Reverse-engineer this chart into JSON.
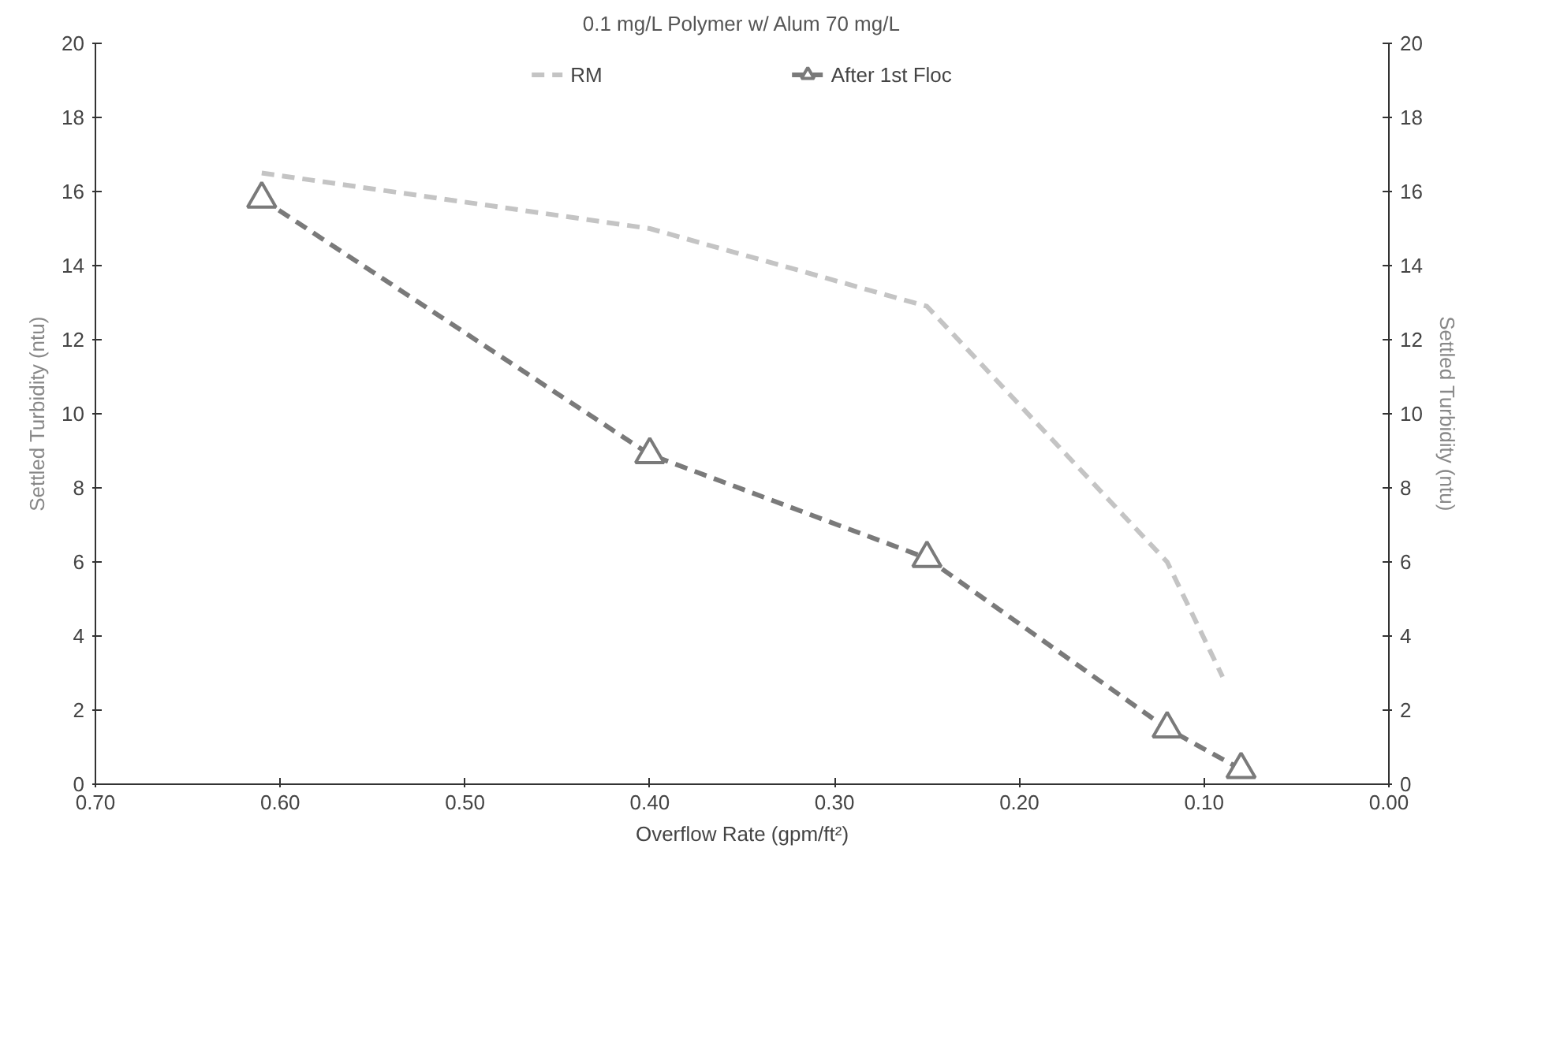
{
  "chart_data": {
    "type": "line",
    "title": "0.1 mg/L Polymer w/ Alum 70 mg/L",
    "xlabel": "Overflow Rate (gpm/ft²)",
    "ylabel": "Settled Turbidity (ntu)",
    "y2label": "Settled Turbidity (ntu)",
    "series": [
      {
        "name": "RM",
        "color": "#c4c4c4",
        "x": [
          0.61,
          0.4,
          0.25,
          0.12,
          0.09
        ],
        "values": [
          16.5,
          15.0,
          12.9,
          6.0,
          2.9
        ],
        "marker": "none",
        "line_style": "dashed"
      },
      {
        "name": "After 1st Floc",
        "color": "#7a7a7a",
        "x": [
          0.61,
          0.4,
          0.25,
          0.12,
          0.08
        ],
        "values": [
          15.8,
          8.9,
          6.1,
          1.5,
          0.4
        ],
        "marker": "triangle",
        "line_style": "dashed"
      }
    ],
    "xlim": [
      0.7,
      0.0
    ],
    "xticks": [
      {
        "value": 0.7,
        "label": "0.70"
      },
      {
        "value": 0.6,
        "label": "0.60"
      },
      {
        "value": 0.5,
        "label": "0.50"
      },
      {
        "value": 0.4,
        "label": "0.40"
      },
      {
        "value": 0.3,
        "label": "0.30"
      },
      {
        "value": 0.2,
        "label": "0.20"
      },
      {
        "value": 0.1,
        "label": "0.10"
      },
      {
        "value": 0.0,
        "label": "0.00"
      }
    ],
    "ylim": [
      0,
      20
    ],
    "yticks": [
      0,
      2,
      4,
      6,
      8,
      10,
      12,
      14,
      16,
      18,
      20
    ],
    "y2lim": [
      0,
      20
    ],
    "y2ticks": [
      0,
      2,
      4,
      6,
      8,
      10,
      12,
      14,
      16,
      18,
      20
    ],
    "grid": false,
    "legend": "top"
  }
}
